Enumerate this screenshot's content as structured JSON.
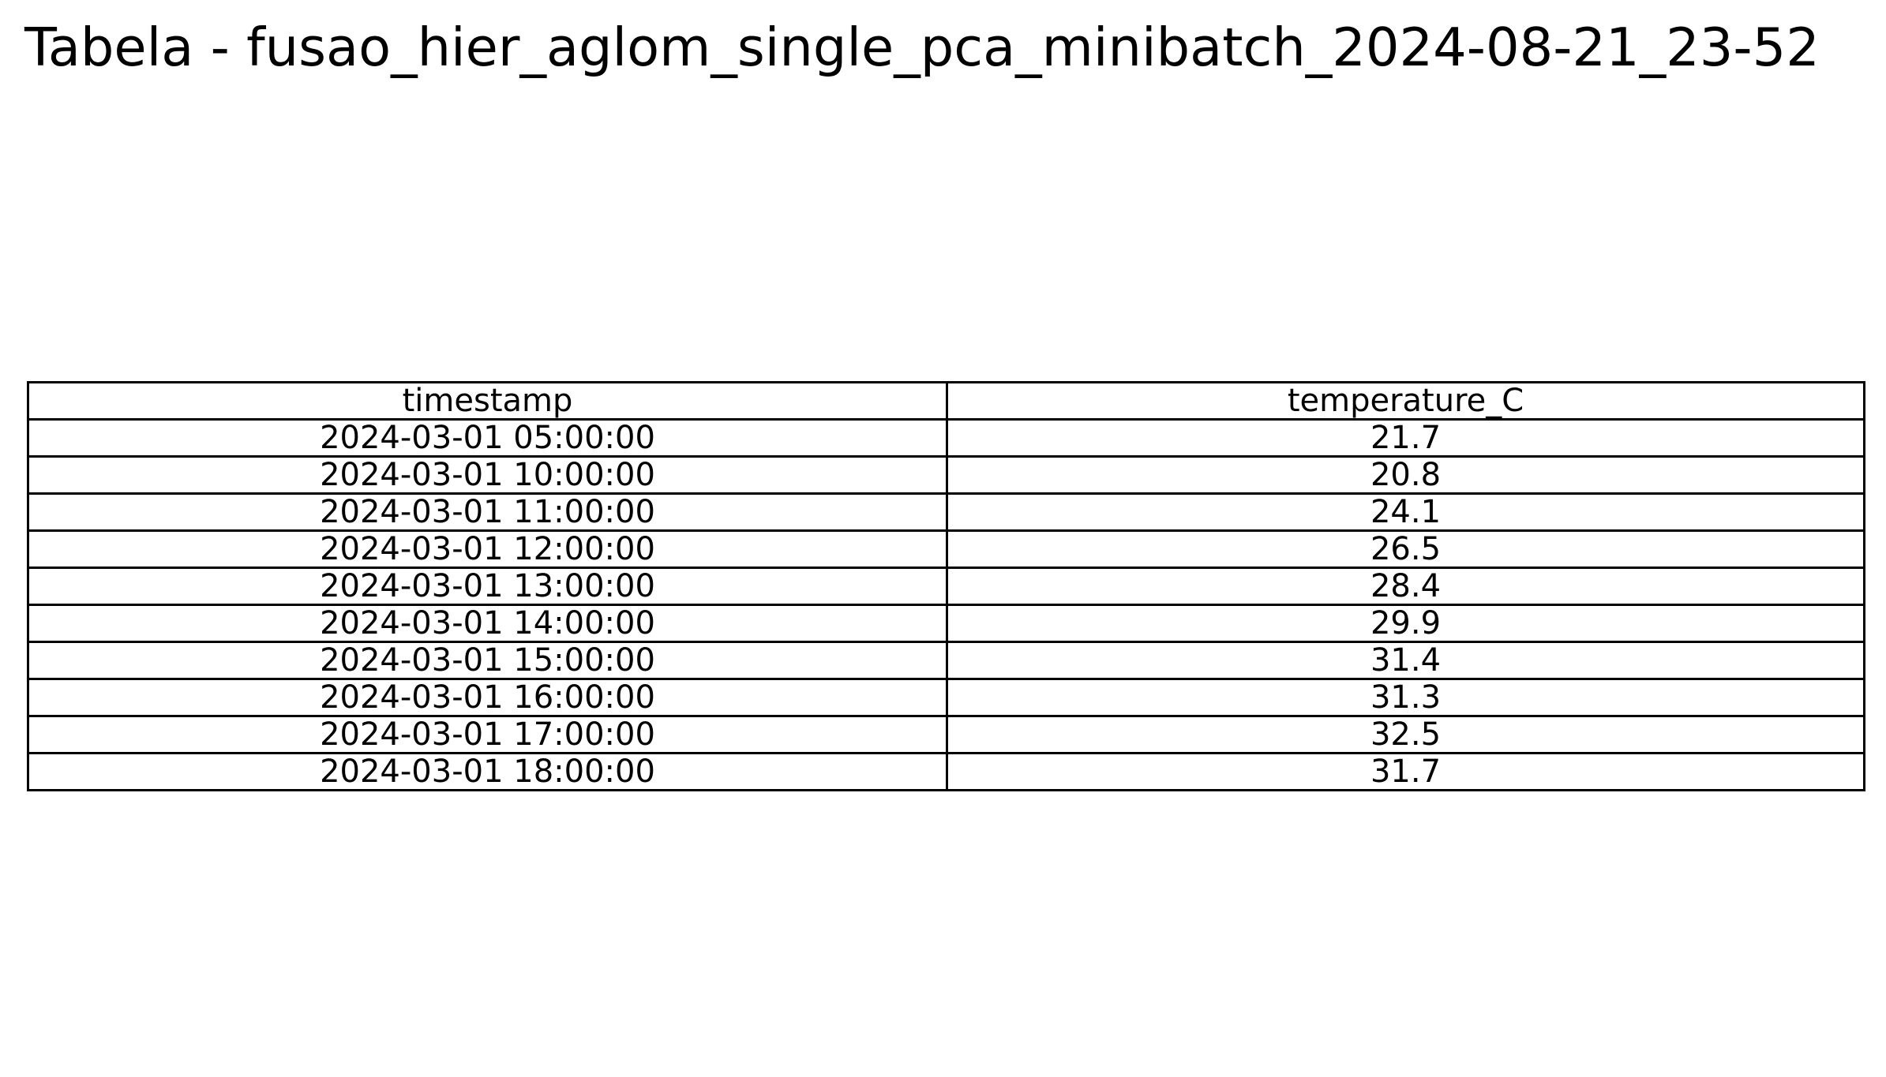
{
  "title": "Tabela - fusao_hier_aglom_single_pca_minibatch_2024-08-21_23-52",
  "chart_data": {
    "type": "table",
    "title": "Tabela - fusao_hier_aglom_single_pca_minibatch_2024-08-21_23-52",
    "columns": [
      "timestamp",
      "temperature_C"
    ],
    "rows": [
      [
        "2024-03-01 05:00:00",
        "21.7"
      ],
      [
        "2024-03-01 10:00:00",
        "20.8"
      ],
      [
        "2024-03-01 11:00:00",
        "24.1"
      ],
      [
        "2024-03-01 12:00:00",
        "26.5"
      ],
      [
        "2024-03-01 13:00:00",
        "28.4"
      ],
      [
        "2024-03-01 14:00:00",
        "29.9"
      ],
      [
        "2024-03-01 15:00:00",
        "31.4"
      ],
      [
        "2024-03-01 16:00:00",
        "31.3"
      ],
      [
        "2024-03-01 17:00:00",
        "32.5"
      ],
      [
        "2024-03-01 18:00:00",
        "31.7"
      ]
    ]
  }
}
